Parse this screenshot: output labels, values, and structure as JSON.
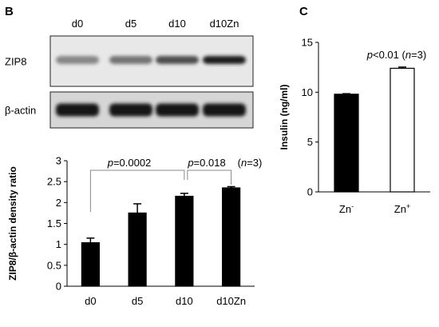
{
  "panels": {
    "b_label": "B",
    "c_label": "C"
  },
  "blot": {
    "lanes": [
      "d0",
      "d5",
      "d10",
      "d10Zn"
    ],
    "rows": [
      {
        "label": "ZIP8",
        "intensity": [
          0.35,
          0.45,
          0.65,
          0.9
        ]
      },
      {
        "label": "β-actin",
        "intensity": [
          0.95,
          0.92,
          0.93,
          0.95
        ]
      }
    ]
  },
  "chart_data": [
    {
      "type": "bar",
      "panel": "B",
      "categories": [
        "d0",
        "d5",
        "d10",
        "d10Zn"
      ],
      "values": [
        1.04,
        1.75,
        2.15,
        2.35
      ],
      "errors": [
        0.11,
        0.22,
        0.07,
        0.03
      ],
      "ylabel": "ZIP8/β-actin density ratio",
      "xlabel": "",
      "ylim": [
        0,
        3
      ],
      "yticks": [
        "0",
        "0.5",
        "1",
        "1.5",
        "2",
        "2.5",
        "3"
      ],
      "fill": [
        "#000000",
        "#000000",
        "#000000",
        "#000000"
      ],
      "annotations": {
        "p1": "p=0.0002",
        "p2": "p=0.018",
        "n": "(n=3)"
      }
    },
    {
      "type": "bar",
      "panel": "C",
      "categories": [
        "Zn-",
        "Zn+"
      ],
      "values": [
        9.8,
        12.4
      ],
      "errors": [
        0.05,
        0.12
      ],
      "ylabel": "Insulin (ng/ml)",
      "xlabel": "",
      "ylim": [
        0,
        15
      ],
      "yticks": [
        "0",
        "5",
        "10",
        "15"
      ],
      "fill": [
        "#000000",
        "#ffffff"
      ],
      "annotations": {
        "p": "p<0.01 (n=3)"
      }
    }
  ]
}
